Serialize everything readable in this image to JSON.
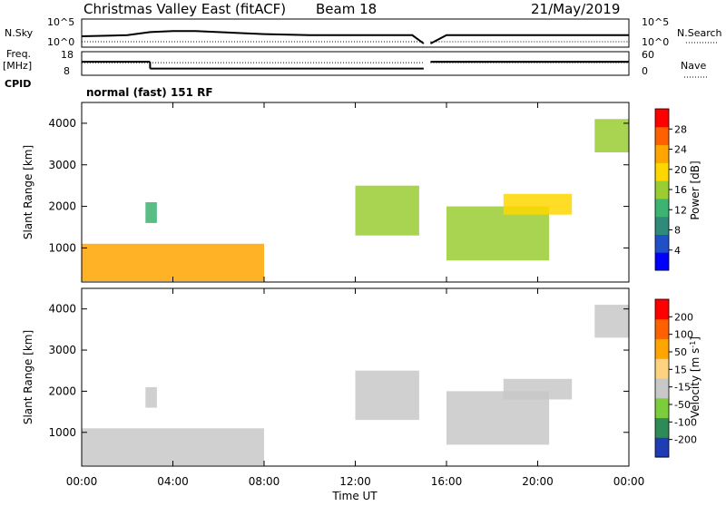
{
  "header": {
    "title": "Christmas Valley East (fitACF)",
    "beam": "Beam 18",
    "date": "21/May/2019"
  },
  "left_labels": {
    "nsky": "N.Sky",
    "freq_line1": "Freq.",
    "freq_line2": "[MHz]",
    "cpid": "CPID"
  },
  "right_labels": {
    "nsearch": "N.Search",
    "nave": "Nave"
  },
  "cpid_text": "normal (fast) 151 RF",
  "chart_data": [
    {
      "type": "line",
      "panel": "noise",
      "ylabel_left": "N.Sky",
      "ylabel_right": "N.Search",
      "yticks_left": [
        "10^5",
        "10^0"
      ],
      "yticks_right": [
        "10^5",
        "10^0"
      ],
      "x": [
        0,
        2,
        3,
        4,
        5,
        6,
        8,
        10,
        12,
        14.5,
        15,
        15.3,
        16,
        18,
        20,
        22,
        24
      ],
      "nsky_level": [
        0.35,
        0.4,
        0.55,
        0.6,
        0.6,
        0.55,
        0.45,
        0.4,
        0.4,
        0.4,
        0,
        0,
        0.4,
        0.4,
        0.4,
        0.4,
        0.4
      ],
      "gap": [
        15.0,
        15.3
      ]
    },
    {
      "type": "line",
      "panel": "frequency",
      "ylabel_left": "Freq. [MHz]",
      "ylabel_right": "Nave",
      "yticks_left": [
        "18",
        "8"
      ],
      "yticks_right": [
        "60",
        "0"
      ],
      "freq_segments": [
        {
          "x": [
            0,
            3
          ],
          "y": 14
        },
        {
          "x": [
            3,
            15
          ],
          "y": 10
        },
        {
          "x": [
            15.3,
            24
          ],
          "y": 14
        }
      ],
      "nave_level": 32,
      "gap": [
        15.0,
        15.3
      ]
    },
    {
      "type": "heatmap",
      "panel": "power",
      "ylabel": "Slant Range [km]",
      "yticks": [
        "1000",
        "2000",
        "3000",
        "4000"
      ],
      "ylim": [
        180,
        4500
      ],
      "colorbar_label": "Power [dB]",
      "colorbar_ticks": [
        "28",
        "24",
        "20",
        "16",
        "12",
        "8",
        "4"
      ],
      "colorbar_colors": [
        "#0000ff",
        "#2050c8",
        "#2e8b7a",
        "#3cb371",
        "#9acd32",
        "#ffd700",
        "#ffa500",
        "#ff6000",
        "#ff0000"
      ],
      "bands": [
        {
          "t0": 0.0,
          "t1": 8.0,
          "r0": 200,
          "r1": 1100,
          "level": 24
        },
        {
          "t0": 2.8,
          "t1": 3.3,
          "r0": 1600,
          "r1": 2100,
          "level": 14
        },
        {
          "t0": 12.0,
          "t1": 14.8,
          "r0": 1300,
          "r1": 2500,
          "level": 16
        },
        {
          "t0": 16.0,
          "t1": 20.5,
          "r0": 700,
          "r1": 2000,
          "level": 18
        },
        {
          "t0": 18.5,
          "t1": 21.5,
          "r0": 1800,
          "r1": 2300,
          "level": 20
        },
        {
          "t0": 22.5,
          "t1": 24.0,
          "r0": 3300,
          "r1": 4100,
          "level": 18
        }
      ]
    },
    {
      "type": "heatmap",
      "panel": "velocity",
      "ylabel": "Slant Range [km]",
      "yticks": [
        "1000",
        "2000",
        "3000",
        "4000"
      ],
      "ylim": [
        180,
        4500
      ],
      "xlabel": "Time UT",
      "xticks": [
        "00:00",
        "04:00",
        "08:00",
        "12:00",
        "16:00",
        "20:00",
        "00:00"
      ],
      "colorbar_label": "Velocity [m s^-1]",
      "colorbar_ticks": [
        "200",
        "100",
        "50",
        "15",
        "-15",
        "-50",
        "-100",
        "-200"
      ],
      "colorbar_colors": [
        "#1e3cb4",
        "#2e8b57",
        "#7ccd3c",
        "#c8c8c8",
        "#ffd27f",
        "#ffa500",
        "#ff6000",
        "#ff0000"
      ],
      "bands": [
        {
          "t0": 0.0,
          "t1": 8.0,
          "r0": 200,
          "r1": 1100,
          "level": 0
        },
        {
          "t0": 2.8,
          "t1": 3.3,
          "r0": 1600,
          "r1": 2100,
          "level": 0
        },
        {
          "t0": 12.0,
          "t1": 14.8,
          "r0": 1300,
          "r1": 2500,
          "level": 0
        },
        {
          "t0": 16.0,
          "t1": 20.5,
          "r0": 700,
          "r1": 2000,
          "level": 0
        },
        {
          "t0": 18.5,
          "t1": 21.5,
          "r0": 1800,
          "r1": 2300,
          "level": 0
        },
        {
          "t0": 22.5,
          "t1": 24.0,
          "r0": 3300,
          "r1": 4100,
          "level": 0
        }
      ]
    }
  ]
}
